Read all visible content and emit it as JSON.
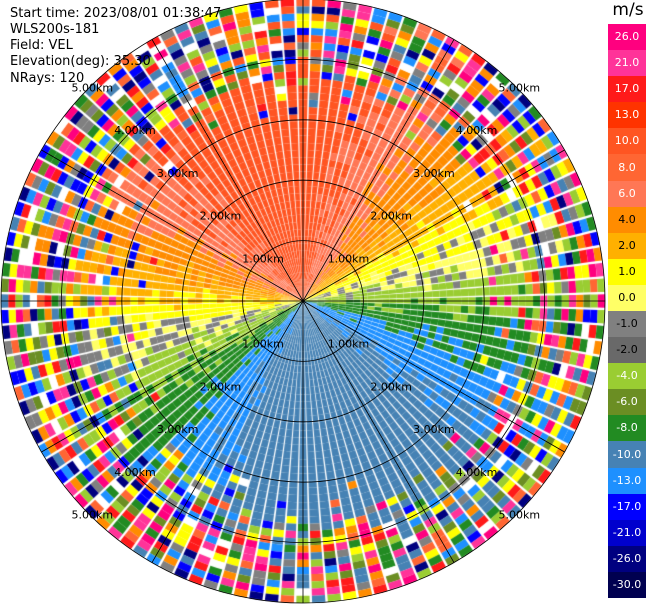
{
  "header": {
    "start_time": "Start time: 2023/08/01 01:38:47",
    "instrument": "WLS200s-181",
    "field": "Field: VEL",
    "elevation": "Elevation(deg): 35.30",
    "nrays": "NRays: 120"
  },
  "colorbar": {
    "unit": "m/s",
    "labels": [
      "26.0",
      "21.0",
      "17.0",
      "13.0",
      "10.0",
      "8.0",
      "6.0",
      "4.0",
      "2.0",
      "1.0",
      "0.0",
      "-1.0",
      "-2.0",
      "-4.0",
      "-6.0",
      "-8.0",
      "-10.0",
      "-13.0",
      "-17.0",
      "-21.0",
      "-26.0",
      "-30.0"
    ],
    "colors": [
      "#ff007f",
      "#ff3399",
      "#ff1a1a",
      "#ff3300",
      "#ff5522",
      "#ff6633",
      "#ff7755",
      "#ff8c00",
      "#ffb000",
      "#ffff00",
      "#ffff66",
      "#808080",
      "#696969",
      "#9acd32",
      "#6b8e23",
      "#228b22",
      "#4682b4",
      "#1e90ff",
      "#0000ff",
      "#0000cd",
      "#000080",
      "#000050"
    ]
  },
  "range_rings": {
    "labels": [
      "1.00km",
      "2.00km",
      "3.00km",
      "4.00km",
      "5.00km"
    ],
    "max_km": 5
  }
}
